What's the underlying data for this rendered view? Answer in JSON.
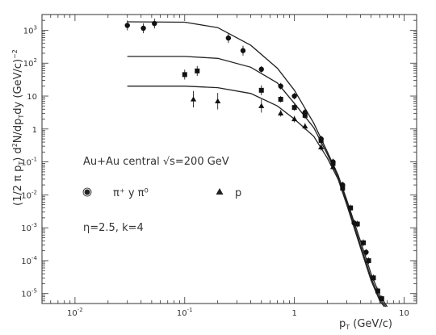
{
  "chart_data": {
    "type": "scatter",
    "title": "",
    "xlabel": "p_T (GeV/c)",
    "ylabel": "(1/2 π p_T) d²N/dp_T dy (GeV/c)⁻²",
    "x_scale": "log",
    "y_scale": "log",
    "xlim": [
      0.005,
      13
    ],
    "ylim": [
      5e-06,
      3000
    ],
    "grid": false,
    "x_ticks": [
      {
        "base": "10",
        "exp": "-2",
        "value": 0.01
      },
      {
        "base": "10",
        "exp": "-1",
        "value": 0.1
      },
      {
        "base": "1",
        "exp": "",
        "value": 1
      },
      {
        "base": "10",
        "exp": "",
        "value": 10
      }
    ],
    "y_ticks": [
      {
        "base": "10",
        "exp": "3",
        "value": 1000
      },
      {
        "base": "10",
        "exp": "2",
        "value": 100
      },
      {
        "base": "10",
        "exp": "",
        "value": 10
      },
      {
        "base": "1",
        "exp": "",
        "value": 1
      },
      {
        "base": "10",
        "exp": "-1",
        "value": 0.1
      },
      {
        "base": "10",
        "exp": "-2",
        "value": 0.01
      },
      {
        "base": "10",
        "exp": "-3",
        "value": 0.001
      },
      {
        "base": "10",
        "exp": "-4",
        "value": 0.0001
      },
      {
        "base": "10",
        "exp": "-5",
        "value": 1e-05
      }
    ],
    "annotations": {
      "system": "Au+Au central √s=200 GeV",
      "legend_pi": "π⁺ y π⁰",
      "legend_p": "p",
      "params": "η=2.5, k=4"
    },
    "series": [
      {
        "marker": "circle",
        "points": [
          {
            "x": 0.03,
            "y": 1400,
            "err": 0.15
          },
          {
            "x": 0.042,
            "y": 1150,
            "err": 0.15
          },
          {
            "x": 0.053,
            "y": 1600,
            "err": 0.15
          },
          {
            "x": 0.25,
            "y": 580,
            "err": 0.15
          },
          {
            "x": 0.34,
            "y": 240,
            "err": 0.15
          },
          {
            "x": 0.5,
            "y": 65,
            "err": 0.1
          },
          {
            "x": 0.75,
            "y": 20,
            "err": 0.1
          },
          {
            "x": 1.0,
            "y": 10,
            "err": 0.1
          },
          {
            "x": 1.25,
            "y": 3.2,
            "err": 0.1
          },
          {
            "x": 1.75,
            "y": 0.5,
            "err": 0.1
          },
          {
            "x": 2.25,
            "y": 0.1,
            "err": 0.1
          },
          {
            "x": 2.75,
            "y": 0.02,
            "err": 0.1
          },
          {
            "x": 3.5,
            "y": 0.0014,
            "err": 0.1
          },
          {
            "x": 4.5,
            "y": 0.00018,
            "err": 0.1
          }
        ]
      },
      {
        "marker": "square",
        "points": [
          {
            "x": 0.1,
            "y": 45,
            "err": 0.15
          },
          {
            "x": 0.13,
            "y": 58,
            "err": 0.15
          },
          {
            "x": 0.5,
            "y": 15,
            "err": 0.15
          },
          {
            "x": 0.75,
            "y": 8,
            "err": 0.1
          },
          {
            "x": 1.0,
            "y": 4.5,
            "err": 0.1
          },
          {
            "x": 1.25,
            "y": 2.6,
            "err": 0.1
          },
          {
            "x": 1.75,
            "y": 0.45,
            "err": 0.1
          },
          {
            "x": 2.25,
            "y": 0.09,
            "err": 0.1
          },
          {
            "x": 2.75,
            "y": 0.016,
            "err": 0.1
          },
          {
            "x": 3.25,
            "y": 0.004,
            "err": 0.1
          },
          {
            "x": 3.75,
            "y": 0.0013,
            "err": 0.1
          },
          {
            "x": 4.25,
            "y": 0.00035,
            "err": 0.1
          },
          {
            "x": 4.75,
            "y": 0.0001,
            "err": 0.1
          },
          {
            "x": 5.25,
            "y": 3e-05,
            "err": 0.1
          },
          {
            "x": 5.75,
            "y": 1.2e-05,
            "err": 0.1
          },
          {
            "x": 6.25,
            "y": 7e-06,
            "err": 0.1
          }
        ]
      },
      {
        "marker": "triangle",
        "points": [
          {
            "x": 0.12,
            "y": 8,
            "err": 0.25
          },
          {
            "x": 0.2,
            "y": 7,
            "err": 0.25
          },
          {
            "x": 0.5,
            "y": 5,
            "err": 0.2
          },
          {
            "x": 0.75,
            "y": 3,
            "err": 0.1
          },
          {
            "x": 1.0,
            "y": 2,
            "err": 0.1
          },
          {
            "x": 1.25,
            "y": 1.2,
            "err": 0.1
          },
          {
            "x": 1.75,
            "y": 0.28,
            "err": 0.1
          },
          {
            "x": 2.25,
            "y": 0.07,
            "err": 0.1
          }
        ]
      }
    ],
    "curves": [
      {
        "points": [
          {
            "x": 0.03,
            "y": 1800
          },
          {
            "x": 0.1,
            "y": 1750
          },
          {
            "x": 0.2,
            "y": 1200
          },
          {
            "x": 0.4,
            "y": 350
          },
          {
            "x": 0.7,
            "y": 70
          },
          {
            "x": 1.0,
            "y": 15
          },
          {
            "x": 1.5,
            "y": 1.5
          },
          {
            "x": 2.0,
            "y": 0.2
          },
          {
            "x": 2.5,
            "y": 0.04
          },
          {
            "x": 3.0,
            "y": 0.007
          },
          {
            "x": 4.0,
            "y": 0.0004
          },
          {
            "x": 5.0,
            "y": 4e-05
          },
          {
            "x": 6.0,
            "y": 9e-06
          },
          {
            "x": 7.0,
            "y": 4e-06
          }
        ]
      },
      {
        "points": [
          {
            "x": 0.03,
            "y": 160
          },
          {
            "x": 0.1,
            "y": 160
          },
          {
            "x": 0.2,
            "y": 140
          },
          {
            "x": 0.4,
            "y": 75
          },
          {
            "x": 0.7,
            "y": 25
          },
          {
            "x": 1.0,
            "y": 6
          },
          {
            "x": 1.5,
            "y": 1.1
          },
          {
            "x": 2.0,
            "y": 0.17
          },
          {
            "x": 2.5,
            "y": 0.035
          },
          {
            "x": 3.0,
            "y": 0.006
          },
          {
            "x": 4.0,
            "y": 0.0003
          },
          {
            "x": 5.0,
            "y": 3e-05
          },
          {
            "x": 6.0,
            "y": 7e-06
          },
          {
            "x": 6.8,
            "y": 4e-06
          }
        ]
      },
      {
        "points": [
          {
            "x": 0.03,
            "y": 20
          },
          {
            "x": 0.1,
            "y": 20
          },
          {
            "x": 0.2,
            "y": 18
          },
          {
            "x": 0.4,
            "y": 12
          },
          {
            "x": 0.7,
            "y": 5
          },
          {
            "x": 1.0,
            "y": 2
          },
          {
            "x": 1.5,
            "y": 0.6
          },
          {
            "x": 2.0,
            "y": 0.13
          },
          {
            "x": 2.5,
            "y": 0.03
          },
          {
            "x": 3.0,
            "y": 0.005
          },
          {
            "x": 4.0,
            "y": 0.00025
          },
          {
            "x": 5.0,
            "y": 2.5e-05
          },
          {
            "x": 6.0,
            "y": 6e-06
          },
          {
            "x": 6.6,
            "y": 4e-06
          }
        ]
      }
    ]
  }
}
